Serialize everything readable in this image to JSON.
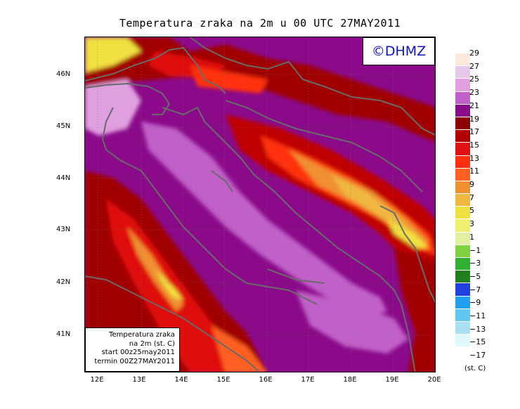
{
  "title": "Temperatura zraka na 2m u 00 UTC 27MAY2011",
  "logo": "©DHMZ",
  "info": {
    "line1": "Temperatura zraka",
    "line2": "na 2m (st. C)",
    "line3": "start 00z25may2011",
    "line4": "termin 00Z27MAY2011"
  },
  "lat_labels": [
    "46N",
    "45N",
    "44N",
    "43N",
    "42N",
    "41N"
  ],
  "lon_labels": [
    "12E",
    "13E",
    "14E",
    "15E",
    "16E",
    "17E",
    "18E",
    "19E",
    "20E"
  ],
  "scale_labels": [
    "29",
    "27",
    "25",
    "23",
    "21",
    "19",
    "17",
    "15",
    "13",
    "11",
    "9",
    "7",
    "5",
    "3",
    "1",
    "−1",
    "−3",
    "−5",
    "−7",
    "−9",
    "−11",
    "−13",
    "−15",
    "−17"
  ],
  "scale_colors": [
    "#fde8dc",
    "#e8c8e8",
    "#e0a0e0",
    "#c060c8",
    "#8a0a8a",
    "#8b0000",
    "#b00000",
    "#e01010",
    "#ff3010",
    "#ff6020",
    "#f09030",
    "#f0b840",
    "#f0e040",
    "#f0f070",
    "#e0f0a0",
    "#80d040",
    "#30b030",
    "#208020",
    "#2040e0",
    "#20a0f0",
    "#60c8f0",
    "#a8e0f0",
    "#e0f8fc"
  ],
  "unit": "(st. C)"
}
